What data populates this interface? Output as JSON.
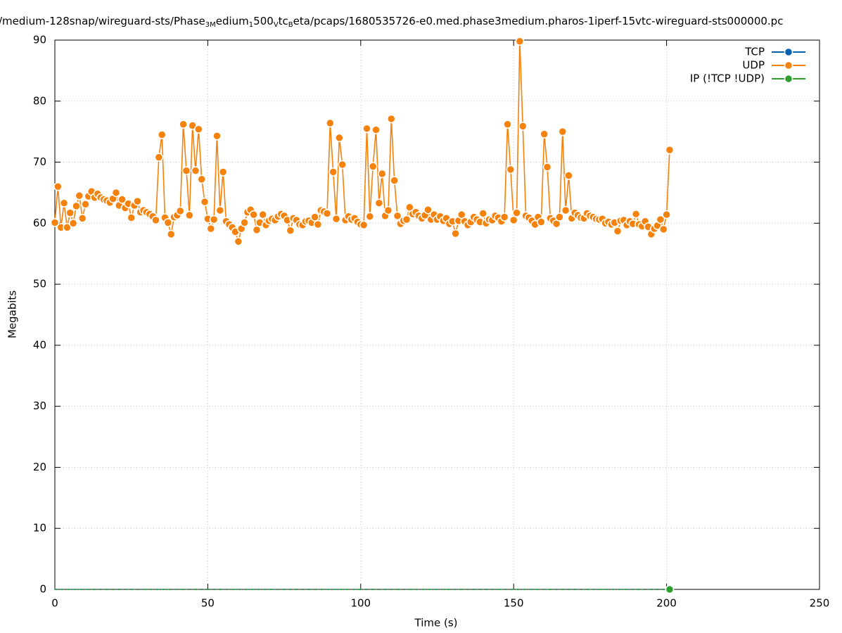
{
  "chart_data": {
    "type": "line",
    "title_parts": [
      {
        "text": "/medium-128snap/wireguard-sts/Phase",
        "sub": false
      },
      {
        "text": "3M",
        "sub": true
      },
      {
        "text": "edium",
        "sub": false
      },
      {
        "text": "1",
        "sub": true
      },
      {
        "text": "500",
        "sub": false
      },
      {
        "text": "V",
        "sub": true
      },
      {
        "text": "tc",
        "sub": false
      },
      {
        "text": "B",
        "sub": true
      },
      {
        "text": "eta/pcaps/1680535726-e0.med.phase3medium.pharos-1iperf-15vtc-wireguard-sts000000.pc",
        "sub": false
      }
    ],
    "x_label": "Time (s)",
    "y_label": "Megabits",
    "xlim": [
      0,
      250
    ],
    "xticks": [
      0,
      50,
      100,
      150,
      200,
      250
    ],
    "ylim": [
      0,
      90
    ],
    "yticks": [
      0,
      10,
      20,
      30,
      40,
      50,
      60,
      70,
      80,
      90
    ],
    "grid": true,
    "legend": "top-right",
    "x": [
      0,
      1,
      2,
      3,
      4,
      5,
      6,
      7,
      8,
      9,
      10,
      11,
      12,
      13,
      14,
      15,
      16,
      17,
      18,
      19,
      20,
      21,
      22,
      23,
      24,
      25,
      26,
      27,
      28,
      29,
      30,
      31,
      32,
      33,
      34,
      35,
      36,
      37,
      38,
      39,
      40,
      41,
      42,
      43,
      44,
      45,
      46,
      47,
      48,
      49,
      50,
      51,
      52,
      53,
      54,
      55,
      56,
      57,
      58,
      59,
      60,
      61,
      62,
      63,
      64,
      65,
      66,
      67,
      68,
      69,
      70,
      71,
      72,
      73,
      74,
      75,
      76,
      77,
      78,
      79,
      80,
      81,
      82,
      83,
      84,
      85,
      86,
      87,
      88,
      89,
      90,
      91,
      92,
      93,
      94,
      95,
      96,
      97,
      98,
      99,
      100,
      101,
      102,
      103,
      104,
      105,
      106,
      107,
      108,
      109,
      110,
      111,
      112,
      113,
      114,
      115,
      116,
      117,
      118,
      119,
      120,
      121,
      122,
      123,
      124,
      125,
      126,
      127,
      128,
      129,
      130,
      131,
      132,
      133,
      134,
      135,
      136,
      137,
      138,
      139,
      140,
      141,
      142,
      143,
      144,
      145,
      146,
      147,
      148,
      149,
      150,
      151,
      152,
      153,
      154,
      155,
      156,
      157,
      158,
      159,
      160,
      161,
      162,
      163,
      164,
      165,
      166,
      167,
      168,
      169,
      170,
      171,
      172,
      173,
      174,
      175,
      176,
      177,
      178,
      179,
      180,
      181,
      182,
      183,
      184,
      185,
      186,
      187,
      188,
      189,
      190,
      191,
      192,
      193,
      194,
      195,
      196,
      197,
      198,
      199,
      200,
      201
    ],
    "series": [
      {
        "name": "TCP",
        "color": "#0060ad",
        "values": [
          0,
          0,
          0,
          0,
          0,
          0,
          0,
          0,
          0,
          0,
          0,
          0,
          0,
          0,
          0,
          0,
          0,
          0,
          0,
          0,
          0,
          0,
          0,
          0,
          0,
          0,
          0,
          0,
          0,
          0,
          0,
          0,
          0,
          0,
          0,
          0,
          0,
          0,
          0,
          0,
          0,
          0,
          0,
          0,
          0,
          0,
          0,
          0,
          0,
          0,
          0,
          0,
          0,
          0,
          0,
          0,
          0,
          0,
          0,
          0,
          0,
          0,
          0,
          0,
          0,
          0,
          0,
          0,
          0,
          0,
          0,
          0,
          0,
          0,
          0,
          0,
          0,
          0,
          0,
          0,
          0,
          0,
          0,
          0,
          0,
          0,
          0,
          0,
          0,
          0,
          0,
          0,
          0,
          0,
          0,
          0,
          0,
          0,
          0,
          0,
          0,
          0,
          0,
          0,
          0,
          0,
          0,
          0,
          0,
          0,
          0,
          0,
          0,
          0,
          0,
          0,
          0,
          0,
          0,
          0,
          0,
          0,
          0,
          0,
          0,
          0,
          0,
          0,
          0,
          0,
          0,
          0,
          0,
          0,
          0,
          0,
          0,
          0,
          0,
          0,
          0,
          0,
          0,
          0,
          0,
          0,
          0,
          0,
          0,
          0,
          0,
          0,
          0,
          0,
          0,
          0,
          0,
          0,
          0,
          0,
          0,
          0,
          0,
          0,
          0,
          0,
          0,
          0,
          0,
          0,
          0,
          0,
          0,
          0,
          0,
          0,
          0,
          0,
          0,
          0,
          0,
          0,
          0,
          0,
          0,
          0,
          0,
          0,
          0,
          0,
          0,
          0,
          0,
          0,
          0,
          0,
          0,
          0,
          0,
          0,
          0,
          0
        ]
      },
      {
        "name": "UDP",
        "color": "#f5820d",
        "values": [
          60.1,
          66,
          59.3,
          63.3,
          59.3,
          61.7,
          60,
          62.8,
          64.5,
          60.8,
          63.1,
          64.4,
          65.2,
          64.2,
          64.8,
          64.2,
          63.9,
          63.7,
          63.4,
          64,
          65,
          62.9,
          63.9,
          62.5,
          63.2,
          60.9,
          62.9,
          63.6,
          61.8,
          62.1,
          61.8,
          61.5,
          61.1,
          60.5,
          70.8,
          74.5,
          60.9,
          60.1,
          58.2,
          61,
          61.3,
          62,
          76.2,
          68.6,
          61.3,
          76,
          68.6,
          75.4,
          67.2,
          63.5,
          60.7,
          59.1,
          60.6,
          74.3,
          62.1,
          68.4,
          60.3,
          59.8,
          59.3,
          58.6,
          57,
          59.1,
          60.1,
          61.8,
          62.2,
          61.4,
          58.9,
          60.1,
          61.4,
          59.7,
          60.4,
          60.7,
          60.5,
          61.1,
          61.5,
          61.2,
          60.5,
          58.8,
          60.8,
          60.5,
          59.8,
          59.7,
          60.3,
          60.4,
          60.1,
          61,
          59.8,
          62.1,
          61.9,
          61.6,
          76.4,
          68.4,
          60.7,
          74,
          69.6,
          60.5,
          61.1,
          60.6,
          60.8,
          60.2,
          59.8,
          59.7,
          75.5,
          61.1,
          69.3,
          75.3,
          63.3,
          68.1,
          61.2,
          62.1,
          77.1,
          67,
          61.2,
          59.9,
          60.4,
          60.6,
          62.6,
          61.5,
          61.8,
          61.2,
          60.8,
          61.3,
          62.2,
          60.6,
          61.4,
          60.6,
          61.1,
          60.4,
          60.8,
          59.9,
          60.3,
          58.3,
          60.4,
          61.4,
          60.3,
          59.7,
          60.2,
          61,
          60.6,
          60.2,
          61.6,
          60,
          60.6,
          60.5,
          61.2,
          60.9,
          60.3,
          61,
          76.2,
          68.8,
          60.5,
          61.7,
          89.8,
          75.9,
          61.2,
          60.9,
          60.4,
          59.8,
          61,
          60.2,
          74.6,
          69.2,
          60.8,
          60.4,
          59.9,
          61,
          75,
          62.1,
          67.8,
          60.8,
          61.7,
          61.3,
          60.9,
          60.8,
          61.6,
          61.2,
          61,
          60.7,
          60.6,
          60.7,
          60,
          60.2,
          59.8,
          60.1,
          58.7,
          60.4,
          60.5,
          59.7,
          60.3,
          59.9,
          61.5,
          59.8,
          59.5,
          60.3,
          59.4,
          58.2,
          59.1,
          59.6,
          60.6,
          59,
          61.4,
          72
        ]
      },
      {
        "name": "IP (!TCP  !UDP)",
        "color": "#2ca02c",
        "values": [
          0,
          0,
          0,
          0,
          0,
          0,
          0,
          0,
          0,
          0,
          0,
          0,
          0,
          0,
          0,
          0,
          0,
          0,
          0,
          0,
          0,
          0,
          0,
          0,
          0,
          0,
          0,
          0,
          0,
          0,
          0,
          0,
          0,
          0,
          0,
          0,
          0,
          0,
          0,
          0,
          0,
          0,
          0,
          0,
          0,
          0,
          0,
          0,
          0,
          0,
          0,
          0,
          0,
          0,
          0,
          0,
          0,
          0,
          0,
          0,
          0,
          0,
          0,
          0,
          0,
          0,
          0,
          0,
          0,
          0,
          0,
          0,
          0,
          0,
          0,
          0,
          0,
          0,
          0,
          0,
          0,
          0,
          0,
          0,
          0,
          0,
          0,
          0,
          0,
          0,
          0,
          0,
          0,
          0,
          0,
          0,
          0,
          0,
          0,
          0,
          0,
          0,
          0,
          0,
          0,
          0,
          0,
          0,
          0,
          0,
          0,
          0,
          0,
          0,
          0,
          0,
          0,
          0,
          0,
          0,
          0,
          0,
          0,
          0,
          0,
          0,
          0,
          0,
          0,
          0,
          0,
          0,
          0,
          0,
          0,
          0,
          0,
          0,
          0,
          0,
          0,
          0,
          0,
          0,
          0,
          0,
          0,
          0,
          0,
          0,
          0,
          0,
          0,
          0,
          0,
          0,
          0,
          0,
          0,
          0,
          0,
          0,
          0,
          0,
          0,
          0,
          0,
          0,
          0,
          0,
          0,
          0,
          0,
          0,
          0,
          0,
          0,
          0,
          0,
          0,
          0,
          0,
          0,
          0,
          0,
          0,
          0,
          0,
          0,
          0,
          0,
          0,
          0,
          0,
          0,
          0,
          0,
          0,
          0,
          0,
          0,
          0
        ]
      }
    ]
  }
}
